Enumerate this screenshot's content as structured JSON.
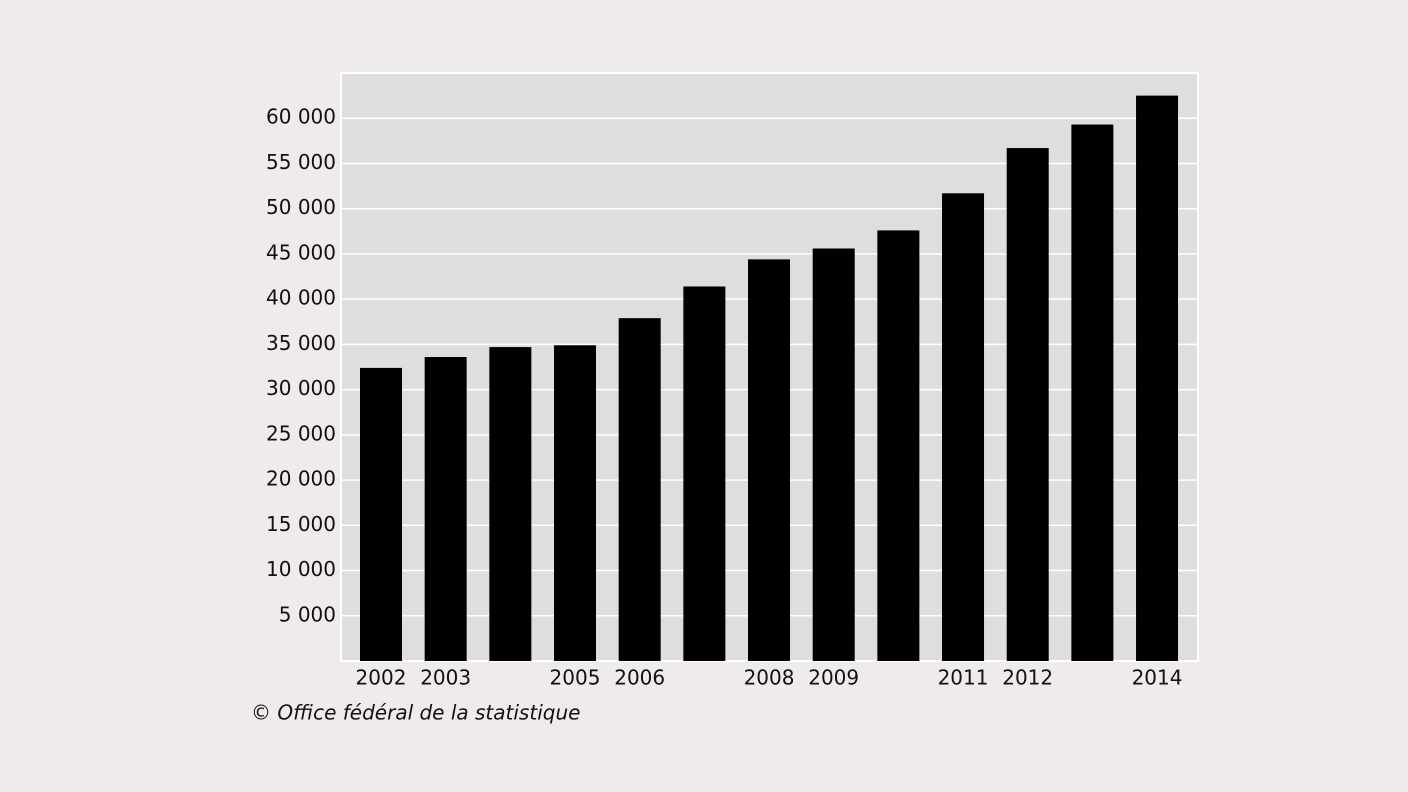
{
  "chart_data": {
    "type": "bar",
    "categories": [
      "2002",
      "2003",
      null,
      "2005",
      "2006",
      null,
      "2008",
      "2009",
      null,
      "2011",
      "2012",
      null,
      "2014"
    ],
    "values": [
      32400,
      33600,
      34700,
      34900,
      37900,
      41400,
      44400,
      45600,
      47600,
      51700,
      56700,
      59300,
      62500
    ],
    "color": "#000000",
    "ylim": [
      0,
      65000
    ],
    "yticks": [
      {
        "value": 5000,
        "label": "5 000"
      },
      {
        "value": 10000,
        "label": "10 000"
      },
      {
        "value": 15000,
        "label": "15 000"
      },
      {
        "value": 20000,
        "label": "20 000"
      },
      {
        "value": 25000,
        "label": "25 000"
      },
      {
        "value": 30000,
        "label": "30 000"
      },
      {
        "value": 35000,
        "label": "35 000"
      },
      {
        "value": 40000,
        "label": "40 000"
      },
      {
        "value": 45000,
        "label": "45 000"
      },
      {
        "value": 50000,
        "label": "50 000"
      },
      {
        "value": 55000,
        "label": "55 000"
      },
      {
        "value": 60000,
        "label": "60 000"
      }
    ],
    "grid": true,
    "source": "© Office fédéral de la statistique"
  }
}
